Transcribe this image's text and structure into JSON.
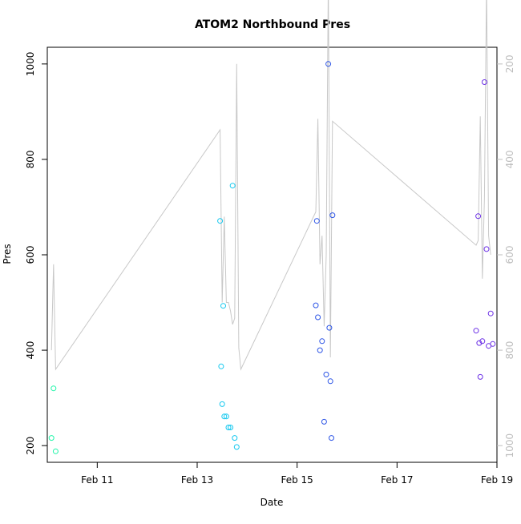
{
  "chart_data": {
    "type": "scatter",
    "title": "ATOM2 Northbound Pres",
    "xlabel": "Date",
    "ylabel": "Pres",
    "x_tick_labels": [
      "Feb 11",
      "Feb 13",
      "Feb 15",
      "Feb 17",
      "Feb 19"
    ],
    "x_tick_dates": [
      "2021-02-11",
      "2021-02-13",
      "2021-02-15",
      "2021-02-17",
      "2021-02-19"
    ],
    "y_ticks": [
      200,
      400,
      600,
      800,
      1000
    ],
    "y2_ticks": [
      200,
      400,
      600,
      800,
      1000
    ],
    "y2_reversed": true,
    "xlim": [
      "2021-02-10 00:00",
      "2021-02-19 00:00"
    ],
    "ylim": [
      165,
      1035
    ],
    "y2lim": [
      1035,
      165
    ],
    "grid": false,
    "colors": {
      "line": "#c8c8c8",
      "axis": "#000000",
      "right_axis": "#bdbdbd"
    },
    "series": [
      {
        "type": "line",
        "axis": "right",
        "color": "#c8c8c8",
        "points": [
          [
            "2021-02-10 02:00",
            800
          ],
          [
            "2021-02-10 03:00",
            620
          ],
          [
            "2021-02-10 04:00",
            840
          ],
          [
            "2021-02-13 11:00",
            338
          ],
          [
            "2021-02-13 12:00",
            700
          ],
          [
            "2021-02-13 13:00",
            520
          ],
          [
            "2021-02-13 14:00",
            700
          ],
          [
            "2021-02-13 15:00",
            700
          ],
          [
            "2021-02-13 16:00",
            718
          ],
          [
            "2021-02-13 17:00",
            746
          ],
          [
            "2021-02-13 18:00",
            733
          ],
          [
            "2021-02-13 19:00",
            200
          ],
          [
            "2021-02-13 20:00",
            795
          ],
          [
            "2021-02-13 21:00",
            840
          ],
          [
            "2021-02-15 09:00",
            510
          ],
          [
            "2021-02-15 10:00",
            315
          ],
          [
            "2021-02-15 11:00",
            620
          ],
          [
            "2021-02-15 12:00",
            560
          ],
          [
            "2021-02-15 13:00",
            750
          ],
          [
            "2021-02-15 14:00",
            600
          ],
          [
            "2021-02-15 15:00",
            20
          ],
          [
            "2021-02-15 16:00",
            815
          ],
          [
            "2021-02-15 17:00",
            320
          ],
          [
            "2021-02-18 14:00",
            580
          ],
          [
            "2021-02-18 15:00",
            570
          ],
          [
            "2021-02-18 16:00",
            310
          ],
          [
            "2021-02-18 17:00",
            650
          ],
          [
            "2021-02-18 18:00",
            480
          ],
          [
            "2021-02-18 19:00",
            30
          ],
          [
            "2021-02-18 20:00",
            560
          ],
          [
            "2021-02-18 21:00",
            600
          ]
        ]
      },
      {
        "type": "scatter",
        "axis": "left",
        "color": "#1ef5a8",
        "points": [
          [
            "2021-02-10 02:00",
            216
          ],
          [
            "2021-02-10 03:00",
            320
          ],
          [
            "2021-02-10 04:00",
            188
          ]
        ]
      },
      {
        "type": "scatter",
        "axis": "left",
        "color": "#14c8ef",
        "points": [
          [
            "2021-02-13 11:00",
            671
          ],
          [
            "2021-02-13 11:30",
            366
          ],
          [
            "2021-02-13 12:00",
            287
          ],
          [
            "2021-02-13 12:30",
            493
          ],
          [
            "2021-02-13 13:00",
            261
          ],
          [
            "2021-02-13 14:00",
            261
          ],
          [
            "2021-02-13 15:00",
            238
          ],
          [
            "2021-02-13 16:00",
            238
          ],
          [
            "2021-02-13 17:00",
            745
          ],
          [
            "2021-02-13 18:00",
            216
          ],
          [
            "2021-02-13 19:00",
            197
          ]
        ]
      },
      {
        "type": "scatter",
        "axis": "left",
        "color": "#2d55e6",
        "points": [
          [
            "2021-02-15 09:00",
            494
          ],
          [
            "2021-02-15 09:30",
            671
          ],
          [
            "2021-02-15 10:00",
            469
          ],
          [
            "2021-02-15 11:00",
            400
          ],
          [
            "2021-02-15 12:00",
            419
          ],
          [
            "2021-02-15 13:00",
            250
          ],
          [
            "2021-02-15 14:00",
            349
          ],
          [
            "2021-02-15 15:00",
            1000
          ],
          [
            "2021-02-15 15:30",
            447
          ],
          [
            "2021-02-15 16:00",
            335
          ],
          [
            "2021-02-15 16:30",
            216
          ],
          [
            "2021-02-15 17:00",
            683
          ]
        ]
      },
      {
        "type": "scatter",
        "axis": "left",
        "color": "#6b2fe6",
        "points": [
          [
            "2021-02-18 14:00",
            441
          ],
          [
            "2021-02-18 15:00",
            681
          ],
          [
            "2021-02-18 15:30",
            415
          ],
          [
            "2021-02-18 16:00",
            344
          ],
          [
            "2021-02-18 17:00",
            419
          ],
          [
            "2021-02-18 18:00",
            962
          ],
          [
            "2021-02-18 19:00",
            612
          ],
          [
            "2021-02-18 20:00",
            409
          ],
          [
            "2021-02-18 21:00",
            477
          ],
          [
            "2021-02-18 22:00",
            413
          ]
        ]
      }
    ]
  }
}
